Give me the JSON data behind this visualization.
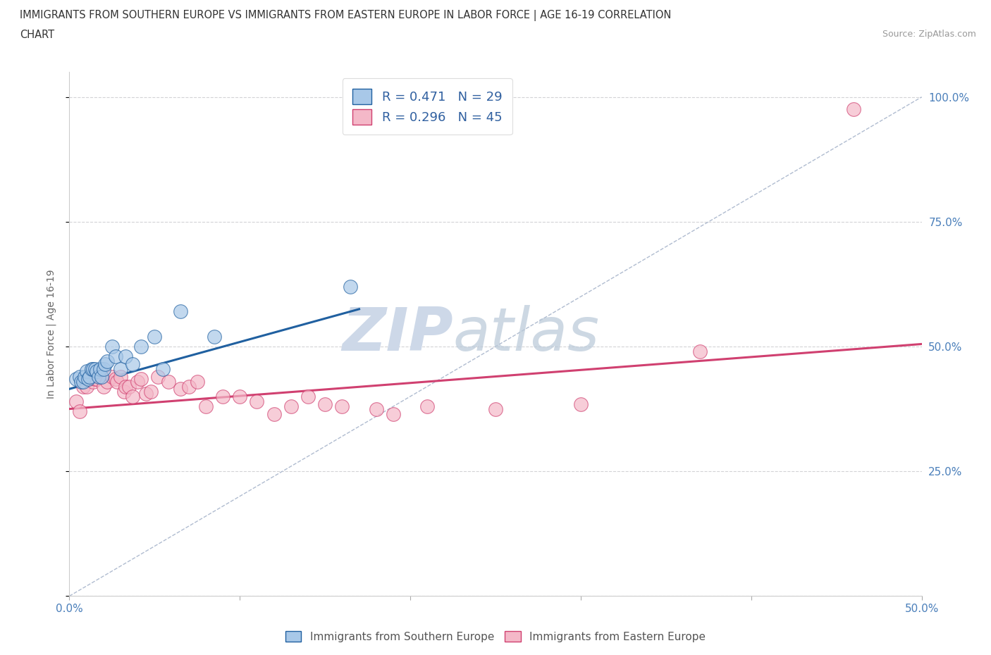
{
  "title_line1": "IMMIGRANTS FROM SOUTHERN EUROPE VS IMMIGRANTS FROM EASTERN EUROPE IN LABOR FORCE | AGE 16-19 CORRELATION",
  "title_line2": "CHART",
  "source_text": "Source: ZipAtlas.com",
  "ylabel": "In Labor Force | Age 16-19",
  "xlim": [
    0.0,
    0.5
  ],
  "ylim": [
    0.0,
    1.05
  ],
  "xticks": [
    0.0,
    0.1,
    0.2,
    0.3,
    0.4,
    0.5
  ],
  "xticklabels": [
    "0.0%",
    "",
    "",
    "",
    "",
    "50.0%"
  ],
  "ytick_vals": [
    0.0,
    0.25,
    0.5,
    0.75,
    1.0
  ],
  "ytick_labels": [
    "",
    "25.0%",
    "50.0%",
    "75.0%",
    "100.0%"
  ],
  "blue_color": "#a8c8e8",
  "pink_color": "#f4b8c8",
  "blue_line_color": "#2060a0",
  "pink_line_color": "#d04070",
  "dashed_line_color": "#b0bcd0",
  "grid_color": "#c8c8cc",
  "background_color": "#ffffff",
  "watermark_color": "#cdd8e8",
  "legend_R_blue": "R = 0.471",
  "legend_N_blue": "N = 29",
  "legend_R_pink": "R = 0.296",
  "legend_N_pink": "N = 45",
  "blue_scatter_x": [
    0.004,
    0.006,
    0.007,
    0.008,
    0.009,
    0.01,
    0.011,
    0.012,
    0.013,
    0.014,
    0.015,
    0.016,
    0.017,
    0.018,
    0.019,
    0.02,
    0.021,
    0.022,
    0.025,
    0.027,
    0.03,
    0.033,
    0.037,
    0.042,
    0.05,
    0.055,
    0.065,
    0.085,
    0.165
  ],
  "blue_scatter_y": [
    0.435,
    0.44,
    0.43,
    0.43,
    0.44,
    0.45,
    0.435,
    0.44,
    0.455,
    0.455,
    0.455,
    0.45,
    0.44,
    0.455,
    0.44,
    0.455,
    0.465,
    0.47,
    0.5,
    0.48,
    0.455,
    0.48,
    0.465,
    0.5,
    0.52,
    0.455,
    0.57,
    0.52,
    0.62
  ],
  "pink_scatter_x": [
    0.004,
    0.006,
    0.008,
    0.01,
    0.012,
    0.013,
    0.014,
    0.015,
    0.016,
    0.018,
    0.02,
    0.022,
    0.025,
    0.027,
    0.028,
    0.03,
    0.032,
    0.033,
    0.035,
    0.037,
    0.04,
    0.042,
    0.045,
    0.048,
    0.052,
    0.058,
    0.065,
    0.07,
    0.075,
    0.08,
    0.09,
    0.1,
    0.11,
    0.12,
    0.13,
    0.14,
    0.15,
    0.16,
    0.18,
    0.19,
    0.21,
    0.25,
    0.3,
    0.37,
    0.46
  ],
  "pink_scatter_y": [
    0.39,
    0.37,
    0.42,
    0.42,
    0.435,
    0.44,
    0.43,
    0.435,
    0.435,
    0.44,
    0.42,
    0.43,
    0.44,
    0.435,
    0.43,
    0.44,
    0.41,
    0.42,
    0.42,
    0.4,
    0.43,
    0.435,
    0.405,
    0.41,
    0.44,
    0.43,
    0.415,
    0.42,
    0.43,
    0.38,
    0.4,
    0.4,
    0.39,
    0.365,
    0.38,
    0.4,
    0.385,
    0.38,
    0.375,
    0.365,
    0.38,
    0.375,
    0.385,
    0.49,
    0.975
  ],
  "blue_line_x": [
    0.0,
    0.17
  ],
  "blue_line_y": [
    0.415,
    0.575
  ],
  "pink_line_x": [
    0.0,
    0.5
  ],
  "pink_line_y": [
    0.375,
    0.505
  ],
  "dashed_line_x": [
    0.0,
    0.5
  ],
  "dashed_line_y": [
    0.0,
    1.0
  ],
  "bottom_legend_items": [
    "Immigrants from Southern Europe",
    "Immigrants from Eastern Europe"
  ]
}
